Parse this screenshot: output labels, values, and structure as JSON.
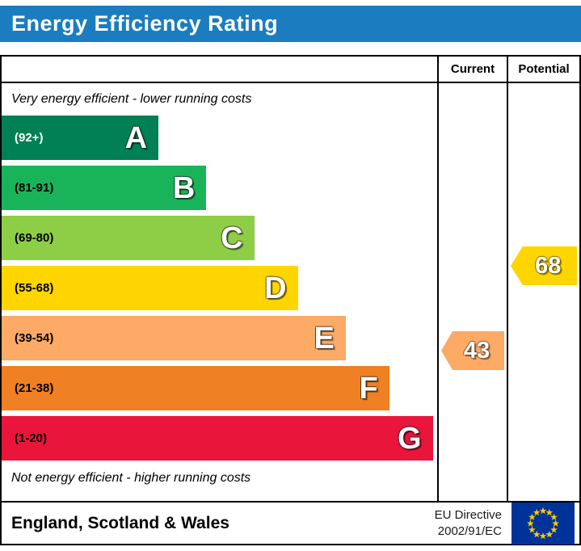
{
  "title": "Energy Efficiency Rating",
  "header": {
    "current": "Current",
    "potential": "Potential"
  },
  "notes": {
    "top": "Very energy efficient - lower running costs",
    "bottom": "Not energy efficient - higher running costs"
  },
  "footer": {
    "region": "England, Scotland & Wales",
    "directive_line1": "EU Directive",
    "directive_line2": "2002/91/EC"
  },
  "colors": {
    "title_bar": "#1b7dc0",
    "border": "#000000",
    "eu_flag_blue": "#003399",
    "eu_flag_star": "#ffcc00"
  },
  "chart_data": {
    "type": "bar",
    "title": "Energy Efficiency Rating",
    "xlabel": "",
    "ylabel": "",
    "bands": [
      {
        "letter": "A",
        "range_label": "(92+)",
        "min": 92,
        "max": 100,
        "color": "#008054",
        "width_pct": 36,
        "label_color": "#ffffff"
      },
      {
        "letter": "B",
        "range_label": "(81-91)",
        "min": 81,
        "max": 91,
        "color": "#19b459",
        "width_pct": 47,
        "label_color": "#000000"
      },
      {
        "letter": "C",
        "range_label": "(69-80)",
        "min": 69,
        "max": 80,
        "color": "#8dce46",
        "width_pct": 58,
        "label_color": "#000000"
      },
      {
        "letter": "D",
        "range_label": "(55-68)",
        "min": 55,
        "max": 68,
        "color": "#ffd500",
        "width_pct": 68,
        "label_color": "#000000"
      },
      {
        "letter": "E",
        "range_label": "(39-54)",
        "min": 39,
        "max": 54,
        "color": "#fcaa65",
        "width_pct": 79,
        "label_color": "#000000"
      },
      {
        "letter": "F",
        "range_label": "(21-38)",
        "min": 21,
        "max": 38,
        "color": "#ef8023",
        "width_pct": 89,
        "label_color": "#000000"
      },
      {
        "letter": "G",
        "range_label": "(1-20)",
        "min": 1,
        "max": 20,
        "color": "#e9153b",
        "width_pct": 99,
        "label_color": "#000000"
      }
    ],
    "current": {
      "value": 43,
      "band": "E",
      "color": "#fcaa65"
    },
    "potential": {
      "value": 68,
      "band": "D",
      "color": "#ffd500"
    }
  }
}
